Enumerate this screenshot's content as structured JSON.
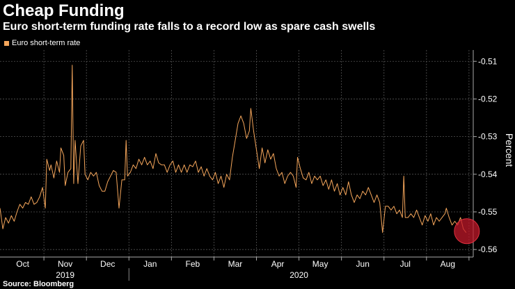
{
  "header": {
    "title": "Cheap Funding",
    "subtitle": "Euro short-term funding rate falls to a record low as spare cash swells"
  },
  "source": "Source: Bloomberg",
  "colors": {
    "background": "#000000",
    "series": "#f5a65b",
    "grid": "#555555",
    "highlight": "#c0182a",
    "text": "#ffffff"
  },
  "chart_data": {
    "type": "line",
    "title": "Cheap Funding",
    "subtitle": "Euro short-term funding rate falls to a record low as spare cash swells",
    "xlabel": "",
    "ylabel": "Percent",
    "ylim": [
      -0.562,
      -0.507
    ],
    "yticks": [
      -0.51,
      -0.52,
      -0.53,
      -0.54,
      -0.55,
      -0.56
    ],
    "ytick_labels": [
      "-0.51",
      "-0.52",
      "-0.53",
      "-0.54",
      "-0.55",
      "-0.56"
    ],
    "xlim": [
      0,
      334
    ],
    "month_ticks": [
      {
        "label": "Oct",
        "x": 16
      },
      {
        "label": "Nov",
        "x": 46
      },
      {
        "label": "Dec",
        "x": 76
      },
      {
        "label": "Jan",
        "x": 106
      },
      {
        "label": "Feb",
        "x": 136
      },
      {
        "label": "Mar",
        "x": 166
      },
      {
        "label": "Apr",
        "x": 196
      },
      {
        "label": "May",
        "x": 226
      },
      {
        "label": "Jun",
        "x": 256
      },
      {
        "label": "Jul",
        "x": 286
      },
      {
        "label": "Aug",
        "x": 316
      }
    ],
    "year_labels": [
      {
        "label": "2019",
        "x": 46
      },
      {
        "label": "2020",
        "x": 211
      }
    ],
    "year_divider_x": 91,
    "legend": [
      "Euro short-term rate"
    ],
    "legend_position": "top-left",
    "highlight_point": {
      "x": 329,
      "y": -0.5555
    },
    "series": [
      {
        "name": "Euro short-term rate",
        "points": [
          [
            0,
            -0.549
          ],
          [
            2,
            -0.5545
          ],
          [
            4,
            -0.5515
          ],
          [
            6,
            -0.553
          ],
          [
            8,
            -0.551
          ],
          [
            10,
            -0.5525
          ],
          [
            12,
            -0.55
          ],
          [
            14,
            -0.548
          ],
          [
            16,
            -0.549
          ],
          [
            18,
            -0.5475
          ],
          [
            20,
            -0.548
          ],
          [
            22,
            -0.546
          ],
          [
            24,
            -0.548
          ],
          [
            26,
            -0.5475
          ],
          [
            28,
            -0.546
          ],
          [
            30,
            -0.5435
          ],
          [
            32,
            -0.549
          ],
          [
            33,
            -0.536
          ],
          [
            35,
            -0.539
          ],
          [
            36,
            -0.5375
          ],
          [
            38,
            -0.541
          ],
          [
            40,
            -0.5365
          ],
          [
            42,
            -0.5395
          ],
          [
            43,
            -0.533
          ],
          [
            45,
            -0.535
          ],
          [
            46,
            -0.543
          ],
          [
            48,
            -0.5395
          ],
          [
            50,
            -0.5385
          ],
          [
            51,
            -0.511
          ],
          [
            52,
            -0.5425
          ],
          [
            53,
            -0.531
          ],
          [
            55,
            -0.5425
          ],
          [
            57,
            -0.5325
          ],
          [
            59,
            -0.531
          ],
          [
            60,
            -0.54
          ],
          [
            62,
            -0.5415
          ],
          [
            64,
            -0.5395
          ],
          [
            66,
            -0.5405
          ],
          [
            68,
            -0.5395
          ],
          [
            70,
            -0.543
          ],
          [
            72,
            -0.5445
          ],
          [
            74,
            -0.5445
          ],
          [
            76,
            -0.542
          ],
          [
            78,
            -0.5405
          ],
          [
            80,
            -0.539
          ],
          [
            82,
            -0.5395
          ],
          [
            84,
            -0.549
          ],
          [
            86,
            -0.5415
          ],
          [
            88,
            -0.5415
          ],
          [
            89,
            -0.531
          ],
          [
            90,
            -0.5405
          ],
          [
            92,
            -0.5395
          ],
          [
            94,
            -0.5375
          ],
          [
            96,
            -0.5385
          ],
          [
            98,
            -0.536
          ],
          [
            100,
            -0.5375
          ],
          [
            102,
            -0.5355
          ],
          [
            104,
            -0.5375
          ],
          [
            106,
            -0.5365
          ],
          [
            108,
            -0.5385
          ],
          [
            110,
            -0.5345
          ],
          [
            112,
            -0.537
          ],
          [
            114,
            -0.5375
          ],
          [
            116,
            -0.5375
          ],
          [
            118,
            -0.5395
          ],
          [
            120,
            -0.5375
          ],
          [
            122,
            -0.5365
          ],
          [
            124,
            -0.5395
          ],
          [
            126,
            -0.5375
          ],
          [
            128,
            -0.5395
          ],
          [
            130,
            -0.5375
          ],
          [
            132,
            -0.5395
          ],
          [
            134,
            -0.5375
          ],
          [
            136,
            -0.538
          ],
          [
            138,
            -0.5365
          ],
          [
            140,
            -0.5395
          ],
          [
            142,
            -0.538
          ],
          [
            144,
            -0.5405
          ],
          [
            146,
            -0.5385
          ],
          [
            148,
            -0.5405
          ],
          [
            150,
            -0.5415
          ],
          [
            152,
            -0.5395
          ],
          [
            154,
            -0.5425
          ],
          [
            156,
            -0.5405
          ],
          [
            158,
            -0.5435
          ],
          [
            160,
            -0.54
          ],
          [
            162,
            -0.5415
          ],
          [
            164,
            -0.5355
          ],
          [
            166,
            -0.531
          ],
          [
            168,
            -0.5265
          ],
          [
            170,
            -0.5245
          ],
          [
            172,
            -0.5265
          ],
          [
            174,
            -0.5305
          ],
          [
            176,
            -0.5285
          ],
          [
            177,
            -0.5225
          ],
          [
            179,
            -0.5285
          ],
          [
            181,
            -0.5335
          ],
          [
            183,
            -0.5385
          ],
          [
            185,
            -0.533
          ],
          [
            187,
            -0.537
          ],
          [
            189,
            -0.5335
          ],
          [
            191,
            -0.536
          ],
          [
            193,
            -0.5345
          ],
          [
            195,
            -0.5385
          ],
          [
            197,
            -0.5405
          ],
          [
            199,
            -0.5395
          ],
          [
            201,
            -0.5425
          ],
          [
            203,
            -0.5405
          ],
          [
            205,
            -0.5395
          ],
          [
            207,
            -0.5405
          ],
          [
            209,
            -0.5435
          ],
          [
            210,
            -0.5355
          ],
          [
            212,
            -0.5385
          ],
          [
            214,
            -0.541
          ],
          [
            216,
            -0.5415
          ],
          [
            218,
            -0.5395
          ],
          [
            220,
            -0.5425
          ],
          [
            222,
            -0.5405
          ],
          [
            224,
            -0.5415
          ],
          [
            226,
            -0.5405
          ],
          [
            228,
            -0.543
          ],
          [
            230,
            -0.5415
          ],
          [
            232,
            -0.544
          ],
          [
            234,
            -0.5415
          ],
          [
            236,
            -0.5445
          ],
          [
            238,
            -0.5425
          ],
          [
            240,
            -0.5455
          ],
          [
            242,
            -0.5435
          ],
          [
            244,
            -0.5455
          ],
          [
            246,
            -0.542
          ],
          [
            248,
            -0.5455
          ],
          [
            250,
            -0.5475
          ],
          [
            252,
            -0.5455
          ],
          [
            254,
            -0.5465
          ],
          [
            256,
            -0.5445
          ],
          [
            258,
            -0.5455
          ],
          [
            260,
            -0.5435
          ],
          [
            262,
            -0.5455
          ],
          [
            264,
            -0.5475
          ],
          [
            266,
            -0.5455
          ],
          [
            268,
            -0.5475
          ],
          [
            270,
            -0.5555
          ],
          [
            272,
            -0.5485
          ],
          [
            274,
            -0.5485
          ],
          [
            276,
            -0.5495
          ],
          [
            278,
            -0.5485
          ],
          [
            280,
            -0.5505
          ],
          [
            282,
            -0.5495
          ],
          [
            284,
            -0.5515
          ],
          [
            285,
            -0.5405
          ],
          [
            286,
            -0.5515
          ],
          [
            288,
            -0.5515
          ],
          [
            290,
            -0.5505
          ],
          [
            292,
            -0.5515
          ],
          [
            294,
            -0.5495
          ],
          [
            296,
            -0.5515
          ],
          [
            298,
            -0.5535
          ],
          [
            300,
            -0.551
          ],
          [
            302,
            -0.5525
          ],
          [
            304,
            -0.5505
          ],
          [
            306,
            -0.5535
          ],
          [
            308,
            -0.5515
          ],
          [
            310,
            -0.5525
          ],
          [
            312,
            -0.5515
          ],
          [
            314,
            -0.5505
          ],
          [
            315,
            -0.549
          ],
          [
            317,
            -0.5515
          ],
          [
            319,
            -0.5535
          ],
          [
            321,
            -0.5525
          ],
          [
            323,
            -0.5535
          ],
          [
            325,
            -0.5515
          ],
          [
            327,
            -0.5545
          ],
          [
            329,
            -0.5555
          ]
        ]
      }
    ]
  }
}
